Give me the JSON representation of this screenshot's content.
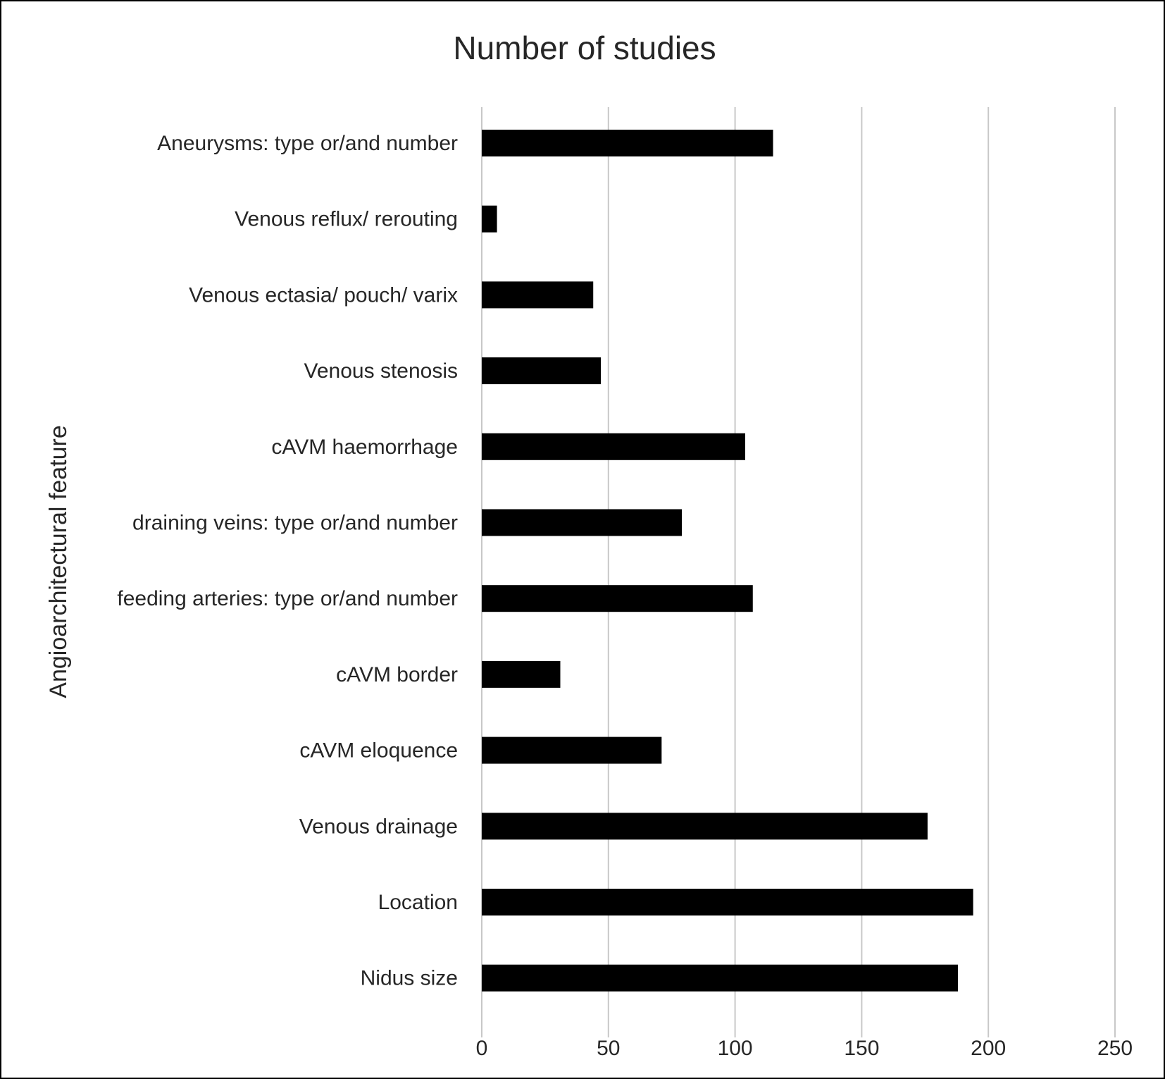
{
  "chart_data": {
    "type": "bar",
    "orientation": "horizontal",
    "title": "Number of studies",
    "xlabel": "",
    "ylabel": "Angioarchitectural feature",
    "categories": [
      "Aneurysms: type or/and number",
      "Venous reflux/ rerouting",
      "Venous ectasia/ pouch/ varix",
      "Venous stenosis",
      "cAVM haemorrhage",
      "draining veins: type or/and number",
      "feeding arteries: type or/and number",
      "cAVM border",
      "cAVM eloquence",
      "Venous drainage",
      "Location",
      "Nidus size"
    ],
    "values": [
      115,
      6,
      44,
      47,
      104,
      79,
      107,
      31,
      71,
      176,
      194,
      188
    ],
    "xlim": [
      0,
      250
    ],
    "xticks": [
      0,
      50,
      100,
      150,
      200,
      250
    ],
    "grid": "vertical",
    "legend": "none",
    "bar_color": "#000000"
  }
}
